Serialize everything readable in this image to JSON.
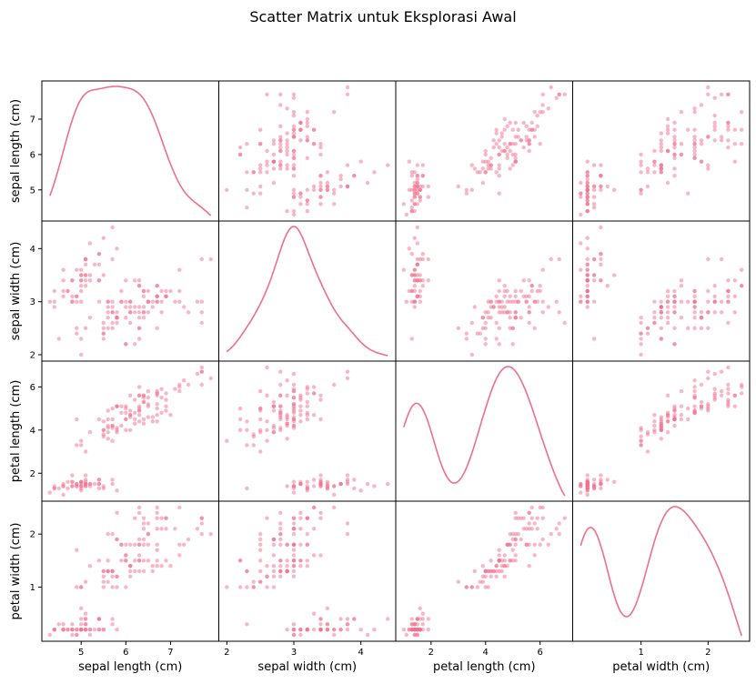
{
  "chart_data": {
    "type": "scatter",
    "title": "Scatter Matrix untuk Eksplorasi Awal",
    "color": "#ee6f8b",
    "diagonal": "kde",
    "variables": [
      {
        "label": "sepal length (cm)",
        "range": [
          4.3,
          7.9
        ],
        "ticks": [
          5,
          6,
          7
        ]
      },
      {
        "label": "sepal width (cm)",
        "range": [
          2.0,
          4.4
        ],
        "ticks": [
          2,
          3,
          4
        ]
      },
      {
        "label": "petal length (cm)",
        "range": [
          1.0,
          6.9
        ],
        "ticks": [
          2,
          4,
          6
        ]
      },
      {
        "label": "petal width (cm)",
        "range": [
          0.1,
          2.5
        ],
        "ticks": [
          1,
          2
        ]
      }
    ],
    "observations": [
      [
        5.1,
        3.5,
        1.4,
        0.2
      ],
      [
        4.9,
        3.0,
        1.4,
        0.2
      ],
      [
        4.7,
        3.2,
        1.3,
        0.2
      ],
      [
        4.6,
        3.1,
        1.5,
        0.2
      ],
      [
        5.0,
        3.6,
        1.4,
        0.2
      ],
      [
        5.4,
        3.9,
        1.7,
        0.4
      ],
      [
        4.6,
        3.4,
        1.4,
        0.3
      ],
      [
        5.0,
        3.4,
        1.5,
        0.2
      ],
      [
        4.4,
        2.9,
        1.4,
        0.2
      ],
      [
        4.9,
        3.1,
        1.5,
        0.1
      ],
      [
        5.4,
        3.7,
        1.5,
        0.2
      ],
      [
        4.8,
        3.4,
        1.6,
        0.2
      ],
      [
        4.8,
        3.0,
        1.4,
        0.1
      ],
      [
        4.3,
        3.0,
        1.1,
        0.1
      ],
      [
        5.8,
        4.0,
        1.2,
        0.2
      ],
      [
        5.7,
        4.4,
        1.5,
        0.4
      ],
      [
        5.4,
        3.9,
        1.3,
        0.4
      ],
      [
        5.1,
        3.5,
        1.4,
        0.3
      ],
      [
        5.7,
        3.8,
        1.7,
        0.3
      ],
      [
        5.1,
        3.8,
        1.5,
        0.3
      ],
      [
        5.4,
        3.4,
        1.7,
        0.2
      ],
      [
        5.1,
        3.7,
        1.5,
        0.4
      ],
      [
        4.6,
        3.6,
        1.0,
        0.2
      ],
      [
        5.1,
        3.3,
        1.7,
        0.5
      ],
      [
        4.8,
        3.4,
        1.9,
        0.2
      ],
      [
        5.0,
        3.0,
        1.6,
        0.2
      ],
      [
        5.0,
        3.4,
        1.6,
        0.4
      ],
      [
        5.2,
        3.5,
        1.5,
        0.2
      ],
      [
        5.2,
        3.4,
        1.4,
        0.2
      ],
      [
        4.7,
        3.2,
        1.6,
        0.2
      ],
      [
        4.8,
        3.1,
        1.6,
        0.2
      ],
      [
        5.4,
        3.4,
        1.5,
        0.4
      ],
      [
        5.2,
        4.1,
        1.5,
        0.1
      ],
      [
        5.5,
        4.2,
        1.4,
        0.2
      ],
      [
        4.9,
        3.1,
        1.5,
        0.2
      ],
      [
        5.0,
        3.2,
        1.2,
        0.2
      ],
      [
        5.5,
        3.5,
        1.3,
        0.2
      ],
      [
        4.9,
        3.6,
        1.4,
        0.1
      ],
      [
        4.4,
        3.0,
        1.3,
        0.2
      ],
      [
        5.1,
        3.4,
        1.5,
        0.2
      ],
      [
        5.0,
        3.5,
        1.3,
        0.3
      ],
      [
        4.5,
        2.3,
        1.3,
        0.3
      ],
      [
        4.4,
        3.2,
        1.3,
        0.2
      ],
      [
        5.0,
        3.5,
        1.6,
        0.6
      ],
      [
        5.1,
        3.8,
        1.9,
        0.4
      ],
      [
        4.8,
        3.0,
        1.4,
        0.3
      ],
      [
        5.1,
        3.8,
        1.6,
        0.2
      ],
      [
        4.6,
        3.2,
        1.4,
        0.2
      ],
      [
        5.3,
        3.7,
        1.5,
        0.2
      ],
      [
        5.0,
        3.3,
        1.4,
        0.2
      ],
      [
        7.0,
        3.2,
        4.7,
        1.4
      ],
      [
        6.4,
        3.2,
        4.5,
        1.5
      ],
      [
        6.9,
        3.1,
        4.9,
        1.5
      ],
      [
        5.5,
        2.3,
        4.0,
        1.3
      ],
      [
        6.5,
        2.8,
        4.6,
        1.5
      ],
      [
        5.7,
        2.8,
        4.5,
        1.3
      ],
      [
        6.3,
        3.3,
        4.7,
        1.6
      ],
      [
        4.9,
        2.4,
        3.3,
        1.0
      ],
      [
        6.6,
        2.9,
        4.6,
        1.3
      ],
      [
        5.2,
        2.7,
        3.9,
        1.4
      ],
      [
        5.0,
        2.0,
        3.5,
        1.0
      ],
      [
        5.9,
        3.0,
        4.2,
        1.5
      ],
      [
        6.0,
        2.2,
        4.0,
        1.0
      ],
      [
        6.1,
        2.9,
        4.7,
        1.4
      ],
      [
        5.6,
        2.9,
        3.6,
        1.3
      ],
      [
        6.7,
        3.1,
        4.4,
        1.4
      ],
      [
        5.6,
        3.0,
        4.5,
        1.5
      ],
      [
        5.8,
        2.7,
        4.1,
        1.0
      ],
      [
        6.2,
        2.2,
        4.5,
        1.5
      ],
      [
        5.6,
        2.5,
        3.9,
        1.1
      ],
      [
        5.9,
        3.2,
        4.8,
        1.8
      ],
      [
        6.1,
        2.8,
        4.0,
        1.3
      ],
      [
        6.3,
        2.5,
        4.9,
        1.5
      ],
      [
        6.1,
        2.8,
        4.7,
        1.2
      ],
      [
        6.4,
        2.9,
        4.3,
        1.3
      ],
      [
        6.6,
        3.0,
        4.4,
        1.4
      ],
      [
        6.8,
        2.8,
        4.8,
        1.4
      ],
      [
        6.7,
        3.0,
        5.0,
        1.7
      ],
      [
        6.0,
        2.9,
        4.5,
        1.5
      ],
      [
        5.7,
        2.6,
        3.5,
        1.0
      ],
      [
        5.5,
        2.4,
        3.8,
        1.1
      ],
      [
        5.5,
        2.4,
        3.7,
        1.0
      ],
      [
        5.8,
        2.7,
        3.9,
        1.2
      ],
      [
        6.0,
        2.7,
        5.1,
        1.6
      ],
      [
        5.4,
        3.0,
        4.5,
        1.5
      ],
      [
        6.0,
        3.4,
        4.5,
        1.6
      ],
      [
        6.7,
        3.1,
        4.7,
        1.5
      ],
      [
        6.3,
        2.3,
        4.4,
        1.3
      ],
      [
        5.6,
        3.0,
        4.1,
        1.3
      ],
      [
        5.5,
        2.5,
        4.0,
        1.3
      ],
      [
        5.5,
        2.6,
        4.4,
        1.2
      ],
      [
        6.1,
        3.0,
        4.6,
        1.4
      ],
      [
        5.8,
        2.6,
        4.0,
        1.2
      ],
      [
        5.0,
        2.3,
        3.3,
        1.0
      ],
      [
        5.6,
        2.7,
        4.2,
        1.3
      ],
      [
        5.7,
        3.0,
        4.2,
        1.2
      ],
      [
        5.7,
        2.9,
        4.2,
        1.3
      ],
      [
        6.2,
        2.9,
        4.3,
        1.3
      ],
      [
        5.1,
        2.5,
        3.0,
        1.1
      ],
      [
        5.7,
        2.8,
        4.1,
        1.3
      ],
      [
        6.3,
        3.3,
        6.0,
        2.5
      ],
      [
        5.8,
        2.7,
        5.1,
        1.9
      ],
      [
        7.1,
        3.0,
        5.9,
        2.1
      ],
      [
        6.3,
        2.9,
        5.6,
        1.8
      ],
      [
        6.5,
        3.0,
        5.8,
        2.2
      ],
      [
        7.6,
        3.0,
        6.6,
        2.1
      ],
      [
        4.9,
        2.5,
        4.5,
        1.7
      ],
      [
        7.3,
        2.9,
        6.3,
        1.8
      ],
      [
        6.7,
        2.5,
        5.8,
        1.8
      ],
      [
        7.2,
        3.6,
        6.1,
        2.5
      ],
      [
        6.5,
        3.2,
        5.1,
        2.0
      ],
      [
        6.4,
        2.7,
        5.3,
        1.9
      ],
      [
        6.8,
        3.0,
        5.5,
        2.1
      ],
      [
        5.7,
        2.5,
        5.0,
        2.0
      ],
      [
        5.8,
        2.8,
        5.1,
        2.4
      ],
      [
        6.4,
        3.2,
        5.3,
        2.3
      ],
      [
        6.5,
        3.0,
        5.5,
        1.8
      ],
      [
        7.7,
        3.8,
        6.7,
        2.2
      ],
      [
        7.7,
        2.6,
        6.9,
        2.3
      ],
      [
        6.0,
        2.2,
        5.0,
        1.5
      ],
      [
        6.9,
        3.2,
        5.7,
        2.3
      ],
      [
        5.6,
        2.8,
        4.9,
        2.0
      ],
      [
        7.7,
        2.8,
        6.7,
        2.0
      ],
      [
        6.3,
        2.7,
        4.9,
        1.8
      ],
      [
        6.7,
        3.3,
        5.7,
        2.1
      ],
      [
        7.2,
        3.2,
        6.0,
        1.8
      ],
      [
        6.2,
        2.8,
        4.8,
        1.8
      ],
      [
        6.1,
        3.0,
        4.9,
        1.8
      ],
      [
        6.4,
        2.8,
        5.6,
        2.1
      ],
      [
        7.2,
        3.0,
        5.8,
        1.6
      ],
      [
        7.4,
        2.8,
        6.1,
        1.9
      ],
      [
        7.9,
        3.8,
        6.4,
        2.0
      ],
      [
        6.4,
        2.8,
        5.6,
        2.2
      ],
      [
        6.3,
        2.8,
        5.1,
        1.5
      ],
      [
        6.1,
        2.6,
        5.6,
        1.4
      ],
      [
        7.7,
        3.0,
        6.1,
        2.3
      ],
      [
        6.3,
        3.4,
        5.6,
        2.4
      ],
      [
        6.4,
        3.1,
        5.5,
        1.8
      ],
      [
        6.0,
        3.0,
        4.8,
        1.8
      ],
      [
        6.9,
        3.1,
        5.4,
        2.1
      ],
      [
        6.7,
        3.1,
        5.6,
        2.4
      ],
      [
        6.9,
        3.1,
        5.1,
        2.3
      ],
      [
        5.8,
        2.7,
        5.1,
        1.9
      ],
      [
        6.8,
        3.2,
        5.9,
        2.3
      ],
      [
        6.7,
        3.3,
        5.7,
        2.5
      ],
      [
        6.7,
        3.0,
        5.2,
        2.3
      ],
      [
        6.3,
        2.5,
        5.0,
        1.9
      ],
      [
        6.5,
        3.0,
        5.2,
        2.0
      ],
      [
        6.2,
        3.4,
        5.4,
        2.3
      ],
      [
        5.9,
        3.0,
        5.1,
        1.8
      ]
    ]
  }
}
